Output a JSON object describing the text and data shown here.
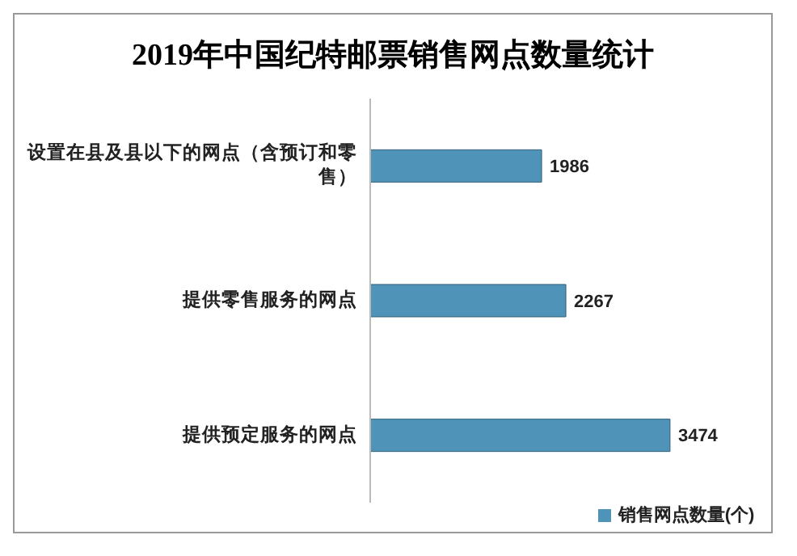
{
  "chart_data": {
    "type": "bar",
    "orientation": "horizontal",
    "title": "2019年中国纪特邮票销售网点数量统计",
    "categories": [
      "设置在县及县以下的网点（含预订和零售）",
      "提供零售服务的网点",
      "提供预定服务的网点"
    ],
    "series": [
      {
        "name": "销售网点数量(个)",
        "color": "#4f93b8",
        "values": [
          1986,
          2267,
          3474
        ]
      }
    ],
    "relative": false,
    "data_labels": true,
    "legend": "bottom"
  }
}
